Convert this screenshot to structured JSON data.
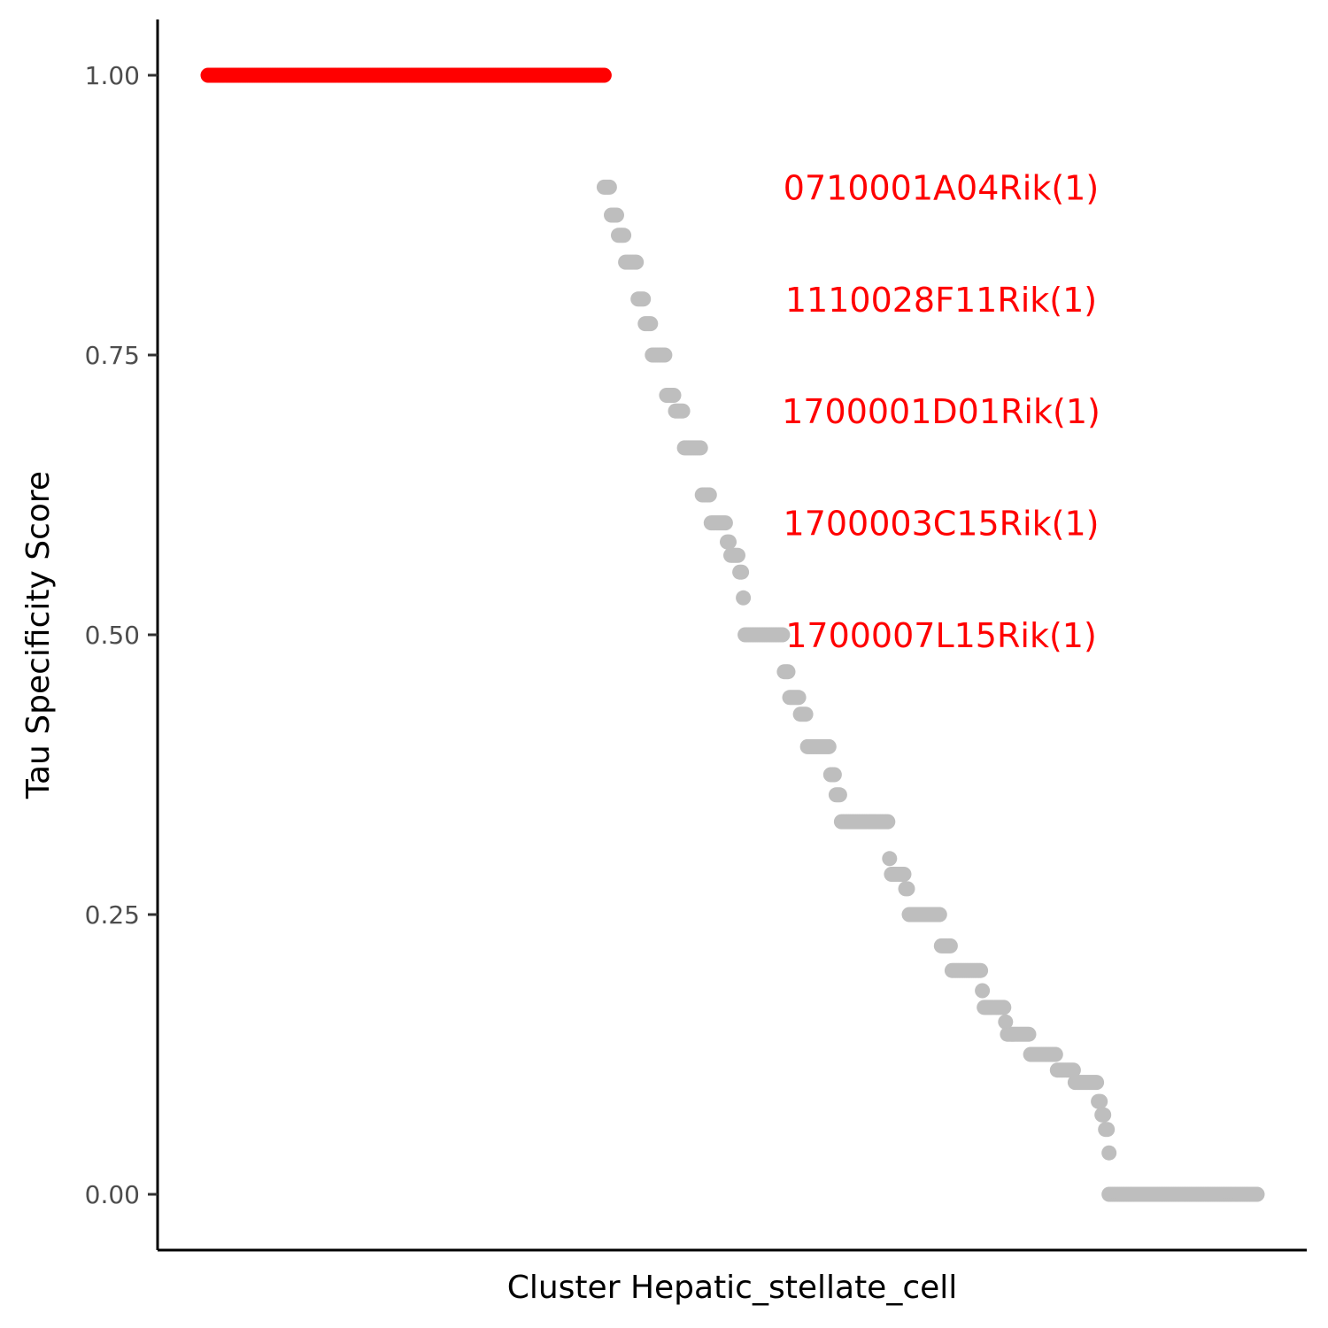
{
  "chart_data": {
    "type": "scatter",
    "xlabel": "Cluster Hepatic_stellate_cell",
    "ylabel": "Tau Specificity Score",
    "ylim": [
      -0.045,
      1.055
    ],
    "yticks": [
      {
        "value": 0.0,
        "label": "0.00"
      },
      {
        "value": 0.25,
        "label": "0.25"
      },
      {
        "value": 0.5,
        "label": "0.50"
      },
      {
        "value": 0.75,
        "label": "0.75"
      },
      {
        "value": 1.0,
        "label": "1.00"
      }
    ],
    "grid": false,
    "legend": "none",
    "colors": {
      "highlight": "#ff0000",
      "other": "#bebebe"
    },
    "points_note": "x is gene rank (1..n); y is tau score",
    "highlighted_series": {
      "x_range": [
        1,
        223
      ],
      "y": 1.0
    },
    "other_series": {
      "segments": [
        [
          223,
          0.9
        ],
        [
          227,
          0.875
        ],
        [
          231,
          0.857
        ],
        [
          235,
          0.833
        ],
        [
          242,
          0.8
        ],
        [
          246,
          0.778
        ],
        [
          250,
          0.75
        ],
        [
          258,
          0.714
        ],
        [
          263,
          0.7
        ],
        [
          268,
          0.667
        ],
        [
          278,
          0.625
        ],
        [
          283,
          0.6
        ],
        [
          292,
          0.583
        ],
        [
          294,
          0.571
        ],
        [
          299,
          0.556
        ],
        [
          301,
          0.533
        ],
        [
          302,
          0.5
        ],
        [
          324,
          0.467
        ],
        [
          327,
          0.444
        ],
        [
          333,
          0.429
        ],
        [
          337,
          0.4
        ],
        [
          350,
          0.375
        ],
        [
          353,
          0.357
        ],
        [
          356,
          0.333
        ],
        [
          383,
          0.3
        ],
        [
          384,
          0.286
        ],
        [
          392,
          0.273
        ],
        [
          394,
          0.25
        ],
        [
          412,
          0.222
        ],
        [
          418,
          0.2
        ],
        [
          435,
          0.182
        ],
        [
          436,
          0.167
        ],
        [
          448,
          0.154
        ],
        [
          449,
          0.143
        ],
        [
          462,
          0.125
        ],
        [
          477,
          0.111
        ],
        [
          487,
          0.1
        ],
        [
          500,
          0.083
        ],
        [
          502,
          0.071
        ],
        [
          504,
          0.058
        ],
        [
          506,
          0.037
        ],
        [
          506,
          0.0
        ],
        [
          589,
          0.0
        ]
      ]
    },
    "annotations": [
      {
        "text": "0710001A04Rik(1)",
        "y": 0.9
      },
      {
        "text": "1110028F11Rik(1)",
        "y": 0.8
      },
      {
        "text": "1700001D01Rik(1)",
        "y": 0.7
      },
      {
        "text": "1700003C15Rik(1)",
        "y": 0.6
      },
      {
        "text": "1700007L15Rik(1)",
        "y": 0.5
      }
    ]
  }
}
